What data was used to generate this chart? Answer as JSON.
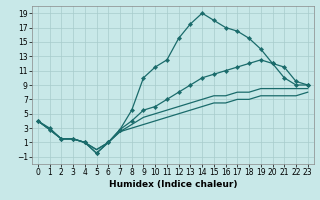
{
  "xlabel": "Humidex (Indice chaleur)",
  "bg_color": "#c8e8e8",
  "line_color": "#1a6b6b",
  "grid_color": "#a8cccc",
  "xlim": [
    -0.5,
    23.5
  ],
  "ylim": [
    -2.0,
    20.0
  ],
  "yticks": [
    -1,
    1,
    3,
    5,
    7,
    9,
    11,
    13,
    15,
    17,
    19
  ],
  "xticks": [
    0,
    1,
    2,
    3,
    4,
    5,
    6,
    7,
    8,
    9,
    10,
    11,
    12,
    13,
    14,
    15,
    16,
    17,
    18,
    19,
    20,
    21,
    22,
    23
  ],
  "line1_x": [
    0,
    1,
    2,
    3,
    4,
    5,
    6,
    7,
    8,
    9,
    10,
    11,
    12,
    13,
    14,
    15,
    16,
    17,
    18,
    19,
    20,
    21,
    22,
    23
  ],
  "line1_y": [
    4.0,
    3.0,
    1.5,
    1.5,
    1.0,
    -0.5,
    1.0,
    2.8,
    5.5,
    10.0,
    11.5,
    12.5,
    15.5,
    17.5,
    19.0,
    18.0,
    17.0,
    16.5,
    15.5,
    14.0,
    12.0,
    10.0,
    9.0,
    9.0
  ],
  "line2_x": [
    0,
    1,
    2,
    3,
    4,
    5,
    6,
    7,
    8,
    9,
    10,
    11,
    12,
    13,
    14,
    15,
    16,
    17,
    18,
    19,
    20,
    21,
    22,
    23
  ],
  "line2_y": [
    4.0,
    2.8,
    1.5,
    1.5,
    1.0,
    -0.5,
    1.0,
    2.8,
    4.0,
    5.5,
    6.0,
    7.0,
    8.0,
    9.0,
    10.0,
    10.5,
    11.0,
    11.5,
    12.0,
    12.5,
    12.0,
    11.5,
    9.5,
    9.0
  ],
  "line3_x": [
    0,
    1,
    2,
    3,
    4,
    5,
    6,
    7,
    8,
    9,
    10,
    11,
    12,
    13,
    14,
    15,
    16,
    17,
    18,
    19,
    20,
    21,
    22,
    23
  ],
  "line3_y": [
    4.0,
    2.8,
    1.5,
    1.5,
    1.0,
    0.0,
    1.0,
    2.5,
    3.5,
    4.5,
    5.0,
    5.5,
    6.0,
    6.5,
    7.0,
    7.5,
    7.5,
    8.0,
    8.0,
    8.5,
    8.5,
    8.5,
    8.5,
    8.5
  ],
  "line4_x": [
    0,
    1,
    2,
    3,
    4,
    5,
    6,
    7,
    8,
    9,
    10,
    11,
    12,
    13,
    14,
    15,
    16,
    17,
    18,
    19,
    20,
    21,
    22,
    23
  ],
  "line4_y": [
    4.0,
    2.8,
    1.5,
    1.5,
    1.0,
    0.0,
    1.0,
    2.5,
    3.0,
    3.5,
    4.0,
    4.5,
    5.0,
    5.5,
    6.0,
    6.5,
    6.5,
    7.0,
    7.0,
    7.5,
    7.5,
    7.5,
    7.5,
    8.0
  ],
  "tick_fontsize": 5.5,
  "xlabel_fontsize": 6.5,
  "linewidth": 0.9,
  "markersize": 2.2
}
